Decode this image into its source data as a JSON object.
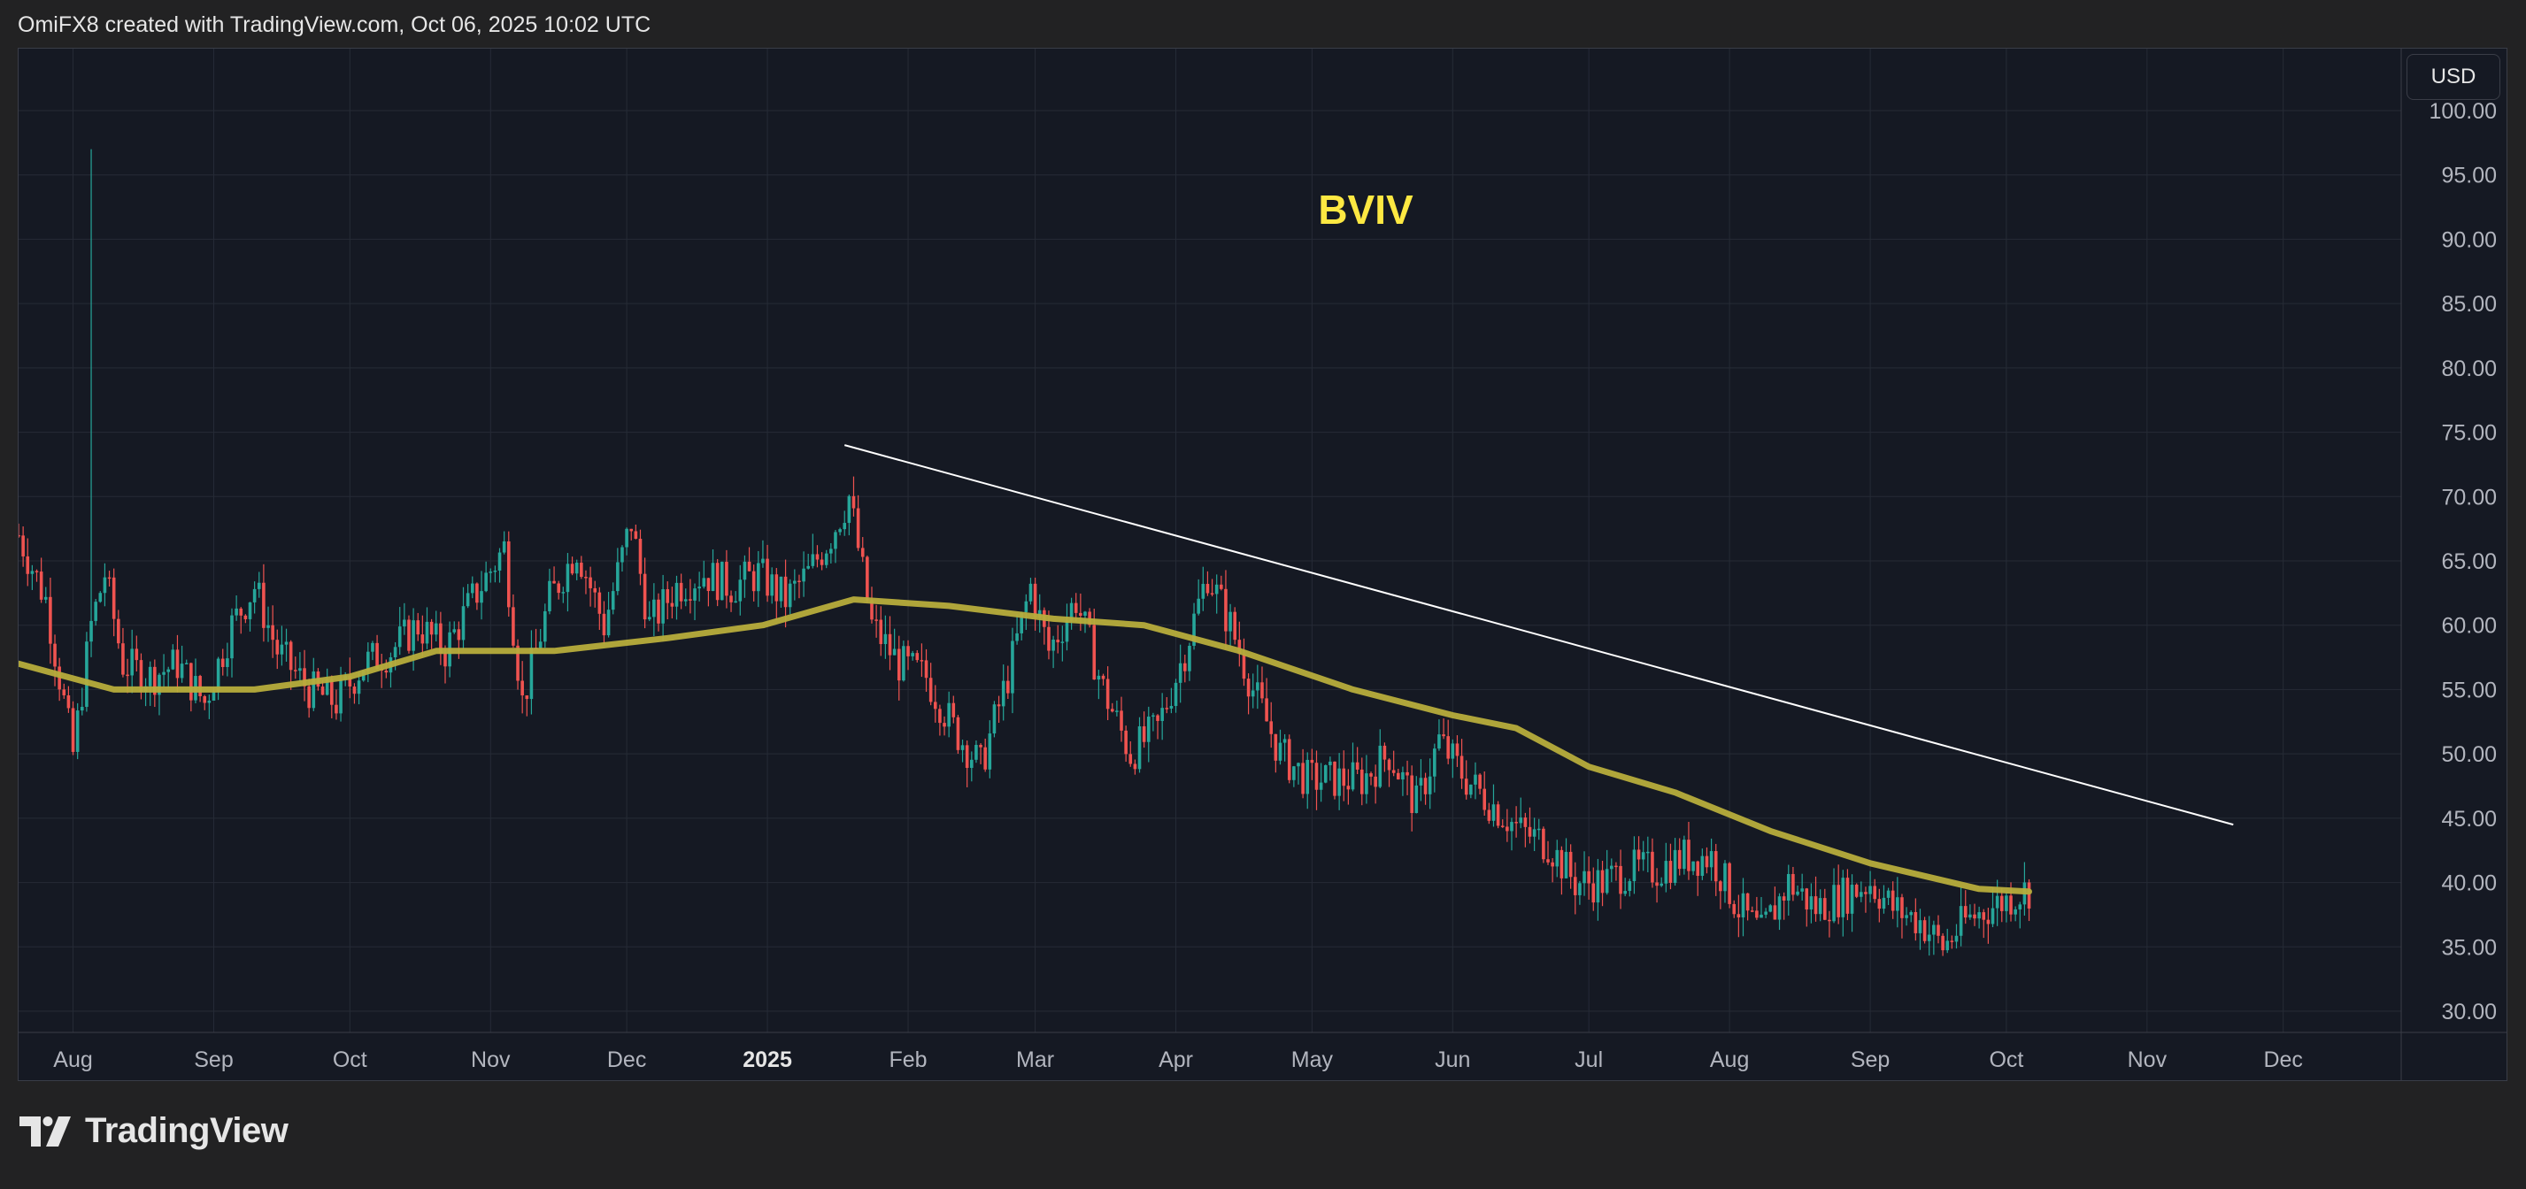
{
  "header": {
    "text": "OmiFX8 created with TradingView.com, Oct 06, 2025 10:02 UTC"
  },
  "currency": {
    "label": "USD"
  },
  "brand": {
    "name": "TradingView"
  },
  "colors": {
    "background": "#151923",
    "grid": "#262b36",
    "up": "#26a69a",
    "down": "#ef5350",
    "ma": "#b7ad3c",
    "trendline": "#ffffff",
    "title": "#fde842"
  },
  "chart_data": {
    "type": "candlestick",
    "title": "BVIV",
    "currency": "USD",
    "ylim": [
      30,
      100
    ],
    "y_ticks": [
      "30.00",
      "35.00",
      "40.00",
      "45.00",
      "50.00",
      "55.00",
      "60.00",
      "65.00",
      "70.00",
      "75.00",
      "80.00",
      "85.00",
      "90.00",
      "95.00",
      "100.00"
    ],
    "x_ticks": [
      {
        "label": "Aug",
        "date": "2024-08-01"
      },
      {
        "label": "Sep",
        "date": "2024-09-01"
      },
      {
        "label": "Oct",
        "date": "2024-10-01"
      },
      {
        "label": "Nov",
        "date": "2024-11-01"
      },
      {
        "label": "Dec",
        "date": "2024-12-01"
      },
      {
        "label": "2025",
        "date": "2025-01-01",
        "bold": true
      },
      {
        "label": "Feb",
        "date": "2025-02-01"
      },
      {
        "label": "Mar",
        "date": "2025-03-01"
      },
      {
        "label": "Apr",
        "date": "2025-04-01"
      },
      {
        "label": "May",
        "date": "2025-05-01"
      },
      {
        "label": "Jun",
        "date": "2025-06-01"
      },
      {
        "label": "Jul",
        "date": "2025-07-01"
      },
      {
        "label": "Aug",
        "date": "2025-08-01"
      },
      {
        "label": "Sep",
        "date": "2025-09-01"
      },
      {
        "label": "Oct",
        "date": "2025-10-01"
      },
      {
        "label": "Nov",
        "date": "2025-11-01"
      },
      {
        "label": "Dec",
        "date": "2025-12-01"
      }
    ],
    "x_range": [
      "2024-07-20",
      "2025-12-27"
    ],
    "price_path": [
      [
        "2024-07-20",
        67
      ],
      [
        "2024-07-26",
        62
      ],
      [
        "2024-08-01",
        50
      ],
      [
        "2024-08-05",
        60
      ],
      [
        "2024-08-08",
        64
      ],
      [
        "2024-08-12",
        57
      ],
      [
        "2024-08-18",
        56
      ],
      [
        "2024-08-24",
        57
      ],
      [
        "2024-08-30",
        54
      ],
      [
        "2024-09-05",
        60
      ],
      [
        "2024-09-10",
        63
      ],
      [
        "2024-09-15",
        58
      ],
      [
        "2024-09-22",
        55
      ],
      [
        "2024-09-28",
        54
      ],
      [
        "2024-10-04",
        57
      ],
      [
        "2024-10-10",
        58
      ],
      [
        "2024-10-16",
        60
      ],
      [
        "2024-10-22",
        58
      ],
      [
        "2024-10-28",
        62
      ],
      [
        "2024-11-04",
        66
      ],
      [
        "2024-11-08",
        54
      ],
      [
        "2024-11-14",
        62
      ],
      [
        "2024-11-20",
        66
      ],
      [
        "2024-11-26",
        60
      ],
      [
        "2024-12-02",
        68
      ],
      [
        "2024-12-06",
        60
      ],
      [
        "2024-12-12",
        63
      ],
      [
        "2024-12-18",
        64
      ],
      [
        "2024-12-24",
        63
      ],
      [
        "2024-12-30",
        64
      ],
      [
        "2025-01-05",
        62
      ],
      [
        "2025-01-10",
        64
      ],
      [
        "2025-01-15",
        67
      ],
      [
        "2025-01-19",
        70
      ],
      [
        "2025-01-24",
        60
      ],
      [
        "2025-01-30",
        57
      ],
      [
        "2025-02-05",
        56
      ],
      [
        "2025-02-11",
        52
      ],
      [
        "2025-02-17",
        49
      ],
      [
        "2025-02-23",
        56
      ],
      [
        "2025-02-28",
        63
      ],
      [
        "2025-03-04",
        58
      ],
      [
        "2025-03-10",
        62
      ],
      [
        "2025-03-16",
        55
      ],
      [
        "2025-03-22",
        50
      ],
      [
        "2025-03-28",
        52
      ],
      [
        "2025-04-03",
        58
      ],
      [
        "2025-04-08",
        64
      ],
      [
        "2025-04-13",
        60
      ],
      [
        "2025-04-18",
        55
      ],
      [
        "2025-04-24",
        50
      ],
      [
        "2025-04-30",
        48
      ],
      [
        "2025-05-06",
        48
      ],
      [
        "2025-05-12",
        48
      ],
      [
        "2025-05-18",
        50
      ],
      [
        "2025-05-24",
        46
      ],
      [
        "2025-05-29",
        51
      ],
      [
        "2025-06-04",
        48
      ],
      [
        "2025-06-10",
        46
      ],
      [
        "2025-06-16",
        44
      ],
      [
        "2025-06-22",
        43
      ],
      [
        "2025-06-28",
        40
      ],
      [
        "2025-07-04",
        40
      ],
      [
        "2025-07-10",
        41
      ],
      [
        "2025-07-16",
        41
      ],
      [
        "2025-07-22",
        42
      ],
      [
        "2025-07-28",
        42
      ],
      [
        "2025-08-03",
        38
      ],
      [
        "2025-08-08",
        36
      ],
      [
        "2025-08-14",
        40
      ],
      [
        "2025-08-20",
        38
      ],
      [
        "2025-08-26",
        39
      ],
      [
        "2025-09-01",
        40
      ],
      [
        "2025-09-06",
        38
      ],
      [
        "2025-09-12",
        37
      ],
      [
        "2025-09-17",
        35
      ],
      [
        "2025-09-22",
        37
      ],
      [
        "2025-09-27",
        38
      ],
      [
        "2025-10-03",
        39
      ],
      [
        "2025-10-06",
        39.5
      ]
    ],
    "spikes": [
      {
        "date": "2024-08-05",
        "high": 97
      }
    ],
    "moving_average": [
      [
        "2024-07-20",
        57
      ],
      [
        "2024-08-10",
        55
      ],
      [
        "2024-09-10",
        55
      ],
      [
        "2024-10-01",
        56
      ],
      [
        "2024-10-20",
        58
      ],
      [
        "2024-11-15",
        58
      ],
      [
        "2024-12-10",
        59
      ],
      [
        "2024-12-31",
        60
      ],
      [
        "2025-01-20",
        62
      ],
      [
        "2025-02-10",
        61.5
      ],
      [
        "2025-03-05",
        60.5
      ],
      [
        "2025-03-25",
        60
      ],
      [
        "2025-04-15",
        58
      ],
      [
        "2025-05-10",
        55
      ],
      [
        "2025-06-01",
        53
      ],
      [
        "2025-06-15",
        52
      ],
      [
        "2025-07-01",
        49
      ],
      [
        "2025-07-20",
        47
      ],
      [
        "2025-08-10",
        44
      ],
      [
        "2025-09-01",
        41.5
      ],
      [
        "2025-09-25",
        39.5
      ],
      [
        "2025-10-06",
        39.3
      ]
    ],
    "trendline": {
      "start": [
        "2025-01-18",
        74
      ],
      "end": [
        "2025-11-20",
        44.5
      ]
    }
  }
}
